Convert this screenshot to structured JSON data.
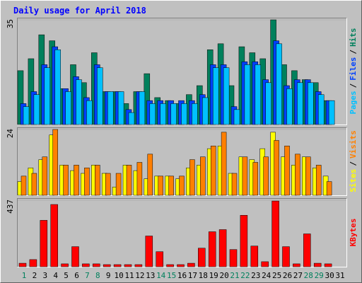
{
  "title": "Daily usage for April 2018",
  "legend_separator": "/",
  "chart_data": [
    {
      "type": "bar",
      "draw_reverse": true,
      "ylim": [
        0,
        35
      ],
      "yticks": [
        35
      ],
      "series": [
        {
          "name": "Pages",
          "color": "#00c0ff",
          "values": [
            6,
            10,
            19,
            25,
            11,
            15,
            8,
            19,
            11,
            11,
            4,
            11,
            7,
            7,
            7,
            7,
            7,
            9,
            19,
            19,
            5,
            20,
            20,
            14,
            27,
            12,
            14,
            14,
            10,
            8,
            null
          ]
        },
        {
          "name": "Files",
          "color": "#0040ff",
          "values": [
            7,
            11,
            20,
            26,
            12,
            16,
            9,
            20,
            11,
            11,
            5,
            11,
            8,
            8,
            8,
            8,
            8,
            10,
            20,
            20,
            6,
            21,
            21,
            15,
            28,
            13,
            15,
            15,
            11,
            8,
            null
          ]
        },
        {
          "name": "Hits",
          "color": "#00805c",
          "values": [
            18,
            22,
            30,
            28,
            12,
            20,
            14,
            24,
            11,
            11,
            7,
            11,
            17,
            9,
            8,
            7,
            10,
            13,
            25,
            27,
            13,
            26,
            24,
            22,
            35,
            20,
            18,
            15,
            14,
            8,
            null
          ]
        }
      ]
    },
    {
      "type": "bar",
      "draw_reverse": false,
      "ylim": [
        0,
        24
      ],
      "yticks": [
        24
      ],
      "series": [
        {
          "name": "Sites",
          "color": "#ffff00",
          "values": [
            5,
            10,
            13,
            22,
            11,
            9,
            8,
            11,
            8,
            3,
            11,
            9,
            6,
            7,
            7,
            6,
            10,
            11,
            17,
            18,
            8,
            14,
            13,
            17,
            23,
            14,
            11,
            14,
            10,
            7,
            null
          ]
        },
        {
          "name": "Visits",
          "color": "#ff8000",
          "values": [
            7,
            8,
            14,
            24,
            11,
            11,
            10,
            11,
            8,
            8,
            11,
            12,
            15,
            7,
            7,
            7,
            13,
            14,
            18,
            23,
            8,
            14,
            12,
            14,
            20,
            18,
            15,
            14,
            11,
            5,
            null
          ]
        }
      ]
    },
    {
      "type": "bar",
      "draw_reverse": false,
      "ylim": [
        0,
        437
      ],
      "yticks": [
        437
      ],
      "categories": [
        "1",
        "2",
        "3",
        "4",
        "5",
        "6",
        "7",
        "8",
        "9",
        "10",
        "11",
        "12",
        "13",
        "14",
        "15",
        "16",
        "17",
        "18",
        "19",
        "20",
        "21",
        "22",
        "23",
        "24",
        "25",
        "26",
        "27",
        "28",
        "29",
        "30",
        "31"
      ],
      "category_colors": [
        "#00805c",
        "#000000",
        "#000000",
        "#000000",
        "#000000",
        "#000000",
        "#00805c",
        "#00805c",
        "#000000",
        "#000000",
        "#000000",
        "#000000",
        "#000000",
        "#00805c",
        "#00805c",
        "#000000",
        "#000000",
        "#000000",
        "#000000",
        "#000000",
        "#00805c",
        "#00805c",
        "#000000",
        "#000000",
        "#000000",
        "#000000",
        "#000000",
        "#00805c",
        "#00805c",
        "#000000",
        "#000000"
      ],
      "series": [
        {
          "name": "KBytes",
          "color": "#ff0000",
          "values": [
            23,
            47,
            305,
            409,
            19,
            132,
            19,
            19,
            14,
            14,
            14,
            14,
            202,
            99,
            14,
            14,
            23,
            122,
            230,
            244,
            113,
            338,
            136,
            33,
            432,
            132,
            19,
            216,
            23,
            19,
            null
          ]
        }
      ]
    }
  ]
}
